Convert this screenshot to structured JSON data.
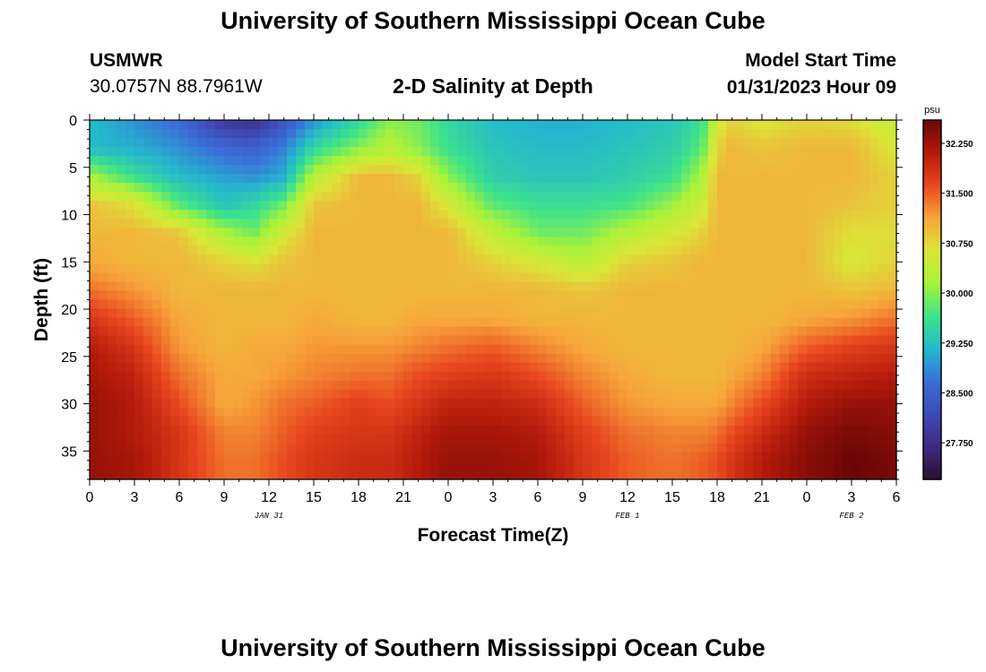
{
  "header": {
    "title": "University of Southern Mississippi Ocean Cube",
    "station": "USMWR",
    "coordinates": "30.0757N  88.7961W",
    "subtitle": "2-D Salinity at Depth",
    "model_start_label": "Model Start Time",
    "model_start_time": "01/31/2023 Hour 09"
  },
  "footer": {
    "title": "University of Southern Mississippi Ocean Cube"
  },
  "chart_data": {
    "type": "heatmap",
    "xlabel": "Forecast Time(Z)",
    "ylabel": "Depth (ft)",
    "x_hours_range": [
      0,
      54
    ],
    "x_ticks": [
      "0",
      "3",
      "6",
      "9",
      "12",
      "15",
      "18",
      "21",
      "0",
      "3",
      "6",
      "9",
      "12",
      "15",
      "18",
      "21",
      "0",
      "3",
      "6"
    ],
    "date_labels": [
      {
        "text": "JAN 31",
        "at_hour": 12
      },
      {
        "text": "FEB 1",
        "at_hour": 36
      },
      {
        "text": "FEB 2",
        "at_hour": 51
      }
    ],
    "ylim": [
      0,
      38
    ],
    "y_inverted": true,
    "y_ticks": [
      0,
      5,
      10,
      15,
      20,
      25,
      30,
      35
    ],
    "colorbar": {
      "unit": "psu",
      "range": [
        27.2,
        32.6
      ],
      "tick_values": [
        27.75,
        28.5,
        29.25,
        30.0,
        30.75,
        31.5,
        32.25
      ],
      "tick_labels": [
        "27.750",
        "28.500",
        "29.250",
        "30.000",
        "30.750",
        "31.500",
        "32.250"
      ],
      "colors": [
        "#2a1030",
        "#3e2a80",
        "#3f4ab5",
        "#3b6ed8",
        "#24b9cc",
        "#3de38a",
        "#a8f23a",
        "#d9e738",
        "#f7a63b",
        "#e8471f",
        "#b31a0a",
        "#6b0606"
      ]
    },
    "profiles": {
      "hours": [
        0,
        3,
        6,
        9,
        11,
        13,
        15,
        18,
        20,
        22,
        24,
        27,
        30,
        33,
        36,
        39,
        41,
        42,
        43,
        45,
        48,
        51,
        54
      ],
      "depths": [
        0,
        3,
        6,
        9,
        12,
        15,
        18,
        21,
        24,
        27,
        30,
        33,
        36,
        38
      ],
      "salinity_psu": [
        [
          29.2,
          29.2,
          30.2,
          30.9,
          31.0,
          31.1,
          31.4,
          31.8,
          32.1,
          32.2,
          32.3,
          32.3,
          32.3,
          32.3
        ],
        [
          28.9,
          29.1,
          29.6,
          30.7,
          31.0,
          31.0,
          31.2,
          31.5,
          31.8,
          32.0,
          32.1,
          32.1,
          32.2,
          32.2
        ],
        [
          28.6,
          28.9,
          29.2,
          29.8,
          30.9,
          31.0,
          31.0,
          31.1,
          31.2,
          31.4,
          31.6,
          31.8,
          31.8,
          31.8
        ],
        [
          27.9,
          28.6,
          29.0,
          29.3,
          30.2,
          30.8,
          31.0,
          31.0,
          31.0,
          31.1,
          31.1,
          31.3,
          31.4,
          31.4
        ],
        [
          27.8,
          28.5,
          28.9,
          29.5,
          29.9,
          30.7,
          31.0,
          31.0,
          31.1,
          31.1,
          31.2,
          31.3,
          31.4,
          31.4
        ],
        [
          28.3,
          28.8,
          29.1,
          29.9,
          30.6,
          30.9,
          31.0,
          31.0,
          31.1,
          31.2,
          31.4,
          31.5,
          31.6,
          31.6
        ],
        [
          28.9,
          29.5,
          30.3,
          30.9,
          31.0,
          31.0,
          31.0,
          31.1,
          31.2,
          31.3,
          31.5,
          31.7,
          31.8,
          31.8
        ],
        [
          29.5,
          30.0,
          31.0,
          31.0,
          31.0,
          31.0,
          31.0,
          31.0,
          31.2,
          31.4,
          31.7,
          31.8,
          31.9,
          31.9
        ],
        [
          30.0,
          30.3,
          31.0,
          31.0,
          31.0,
          31.0,
          31.0,
          31.0,
          31.2,
          31.4,
          31.6,
          31.8,
          31.9,
          31.9
        ],
        [
          29.9,
          30.0,
          30.8,
          31.0,
          31.0,
          31.0,
          31.0,
          31.1,
          31.3,
          31.6,
          31.8,
          32.0,
          32.1,
          32.1
        ],
        [
          29.5,
          29.6,
          30.0,
          30.6,
          31.0,
          31.0,
          31.0,
          31.1,
          31.4,
          31.7,
          32.0,
          32.2,
          32.3,
          32.3
        ],
        [
          29.2,
          29.3,
          29.4,
          29.8,
          30.4,
          30.8,
          31.0,
          31.1,
          31.5,
          31.8,
          32.0,
          32.2,
          32.3,
          32.3
        ],
        [
          29.1,
          29.2,
          29.3,
          29.6,
          29.9,
          30.6,
          31.0,
          31.0,
          31.3,
          31.6,
          31.9,
          32.1,
          32.2,
          32.2
        ],
        [
          29.1,
          29.2,
          29.3,
          29.6,
          29.9,
          30.3,
          30.9,
          31.0,
          31.1,
          31.3,
          31.5,
          31.7,
          31.8,
          31.8
        ],
        [
          29.2,
          29.3,
          29.4,
          29.7,
          30.3,
          30.8,
          31.0,
          31.0,
          31.0,
          31.1,
          31.2,
          31.4,
          31.5,
          31.5
        ],
        [
          29.3,
          29.4,
          29.6,
          30.1,
          30.6,
          30.9,
          31.0,
          31.0,
          31.0,
          31.0,
          31.1,
          31.3,
          31.4,
          31.4
        ],
        [
          29.6,
          29.8,
          30.2,
          30.5,
          30.8,
          31.0,
          31.0,
          31.0,
          31.0,
          31.0,
          31.1,
          31.3,
          31.5,
          31.5
        ],
        [
          30.5,
          30.8,
          31.0,
          31.0,
          31.0,
          31.0,
          31.0,
          31.0,
          31.0,
          31.0,
          31.1,
          31.4,
          31.6,
          31.6
        ],
        [
          30.8,
          31.0,
          31.0,
          31.0,
          31.0,
          31.0,
          31.0,
          31.0,
          31.0,
          31.1,
          31.3,
          31.6,
          31.8,
          31.8
        ],
        [
          30.6,
          30.9,
          31.0,
          31.0,
          31.0,
          31.0,
          31.0,
          31.0,
          31.1,
          31.3,
          31.6,
          31.9,
          32.1,
          32.1
        ],
        [
          30.8,
          31.0,
          31.0,
          31.0,
          31.0,
          31.0,
          31.0,
          31.1,
          31.5,
          31.9,
          32.1,
          32.3,
          32.4,
          32.4
        ],
        [
          30.7,
          31.0,
          31.0,
          30.9,
          30.7,
          30.6,
          30.9,
          31.2,
          31.7,
          32.0,
          32.3,
          32.5,
          32.6,
          32.6
        ],
        [
          30.4,
          30.6,
          30.8,
          30.8,
          30.7,
          30.8,
          31.0,
          31.4,
          31.8,
          32.1,
          32.3,
          32.4,
          32.5,
          32.5
        ]
      ]
    }
  }
}
